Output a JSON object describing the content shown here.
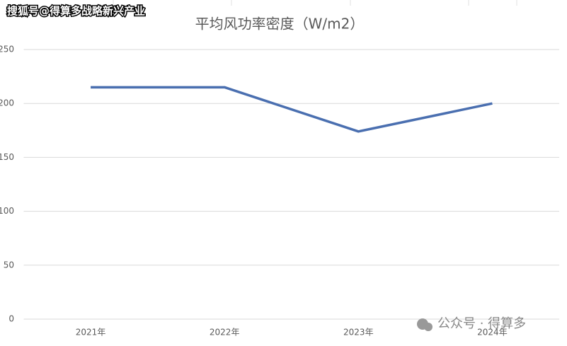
{
  "chart_data": {
    "type": "line",
    "title": "平均风功率密度（W/m2）",
    "categories": [
      "2021年",
      "2022年",
      "2023年",
      "2024年"
    ],
    "series": [
      {
        "name": "平均风功率密度",
        "color": "#4a6fb0",
        "values": [
          215,
          215,
          174,
          200
        ]
      }
    ],
    "ylim": [
      0,
      250
    ],
    "yticks": [
      0,
      50,
      100,
      150,
      200,
      250
    ],
    "grid": true,
    "annotations": [
      "搜狐号@得算多战略新兴产业",
      "公众号 · 得算多"
    ]
  }
}
